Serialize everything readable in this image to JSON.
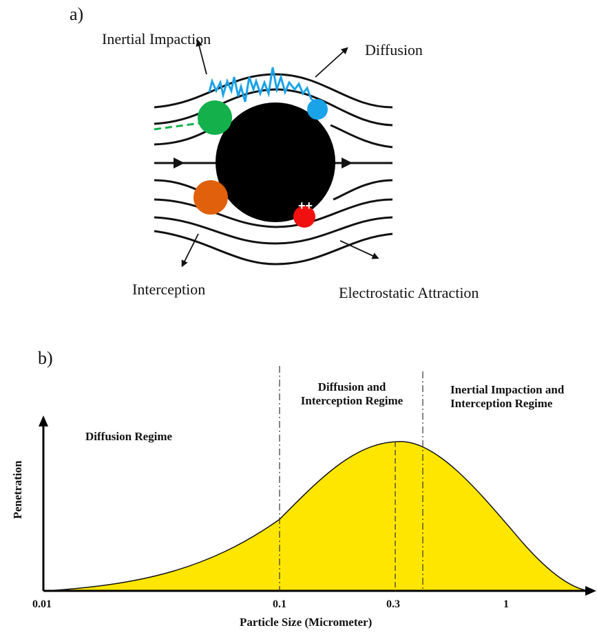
{
  "panel_a": {
    "label": "a)",
    "mechanisms": {
      "inertial_impaction": "Inertial Impaction",
      "diffusion": "Diffusion",
      "interception": "Interception",
      "electrostatic_attraction": "Electrostatic Attraction"
    },
    "charge_symbol": "++",
    "colors": {
      "fiber": "#000000",
      "streamline": "#111111",
      "inertial_particle": "#13b04b",
      "diffusion_particle": "#1aa3e8",
      "diffusion_path": "#1aa3e8",
      "interception_particle": "#e0600b",
      "electrostatic_particle": "#f01010"
    }
  },
  "panel_b": {
    "label": "b)",
    "regimes": {
      "diffusion": "Diffusion Regime",
      "diffusion_interception_line1": "Diffusion and",
      "diffusion_interception_line2": "Interception Regime",
      "inertial_interception_line1": "Inertial Impaction and",
      "inertial_interception_line2": "Interception Regime"
    },
    "chart_data": {
      "type": "area",
      "xlabel": "Particle Size (Micrometer)",
      "ylabel": "Penetration",
      "x_scale": "log",
      "x_ticks": [
        "0.01",
        "0.1",
        "0.3",
        "1"
      ],
      "regime_boundaries": [
        0.1,
        0.45
      ],
      "peak_x": 0.3,
      "fill_color": "#ffe600"
    }
  }
}
